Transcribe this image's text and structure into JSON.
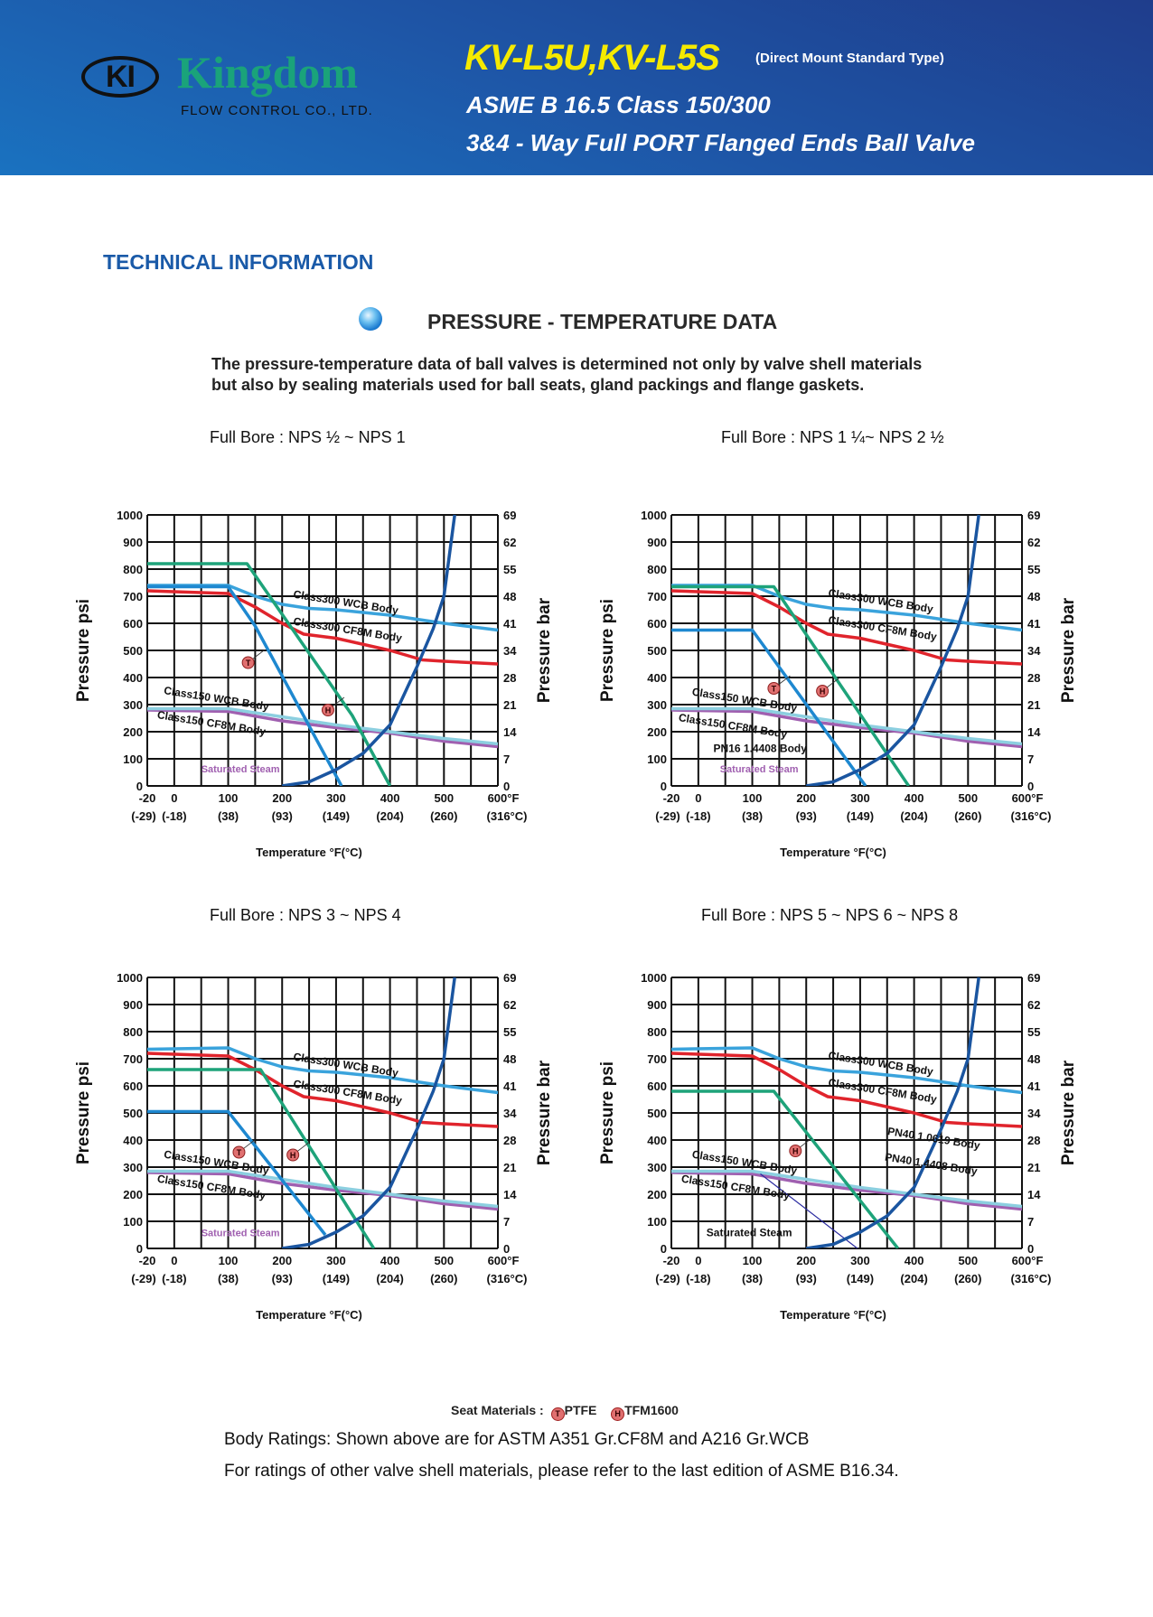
{
  "header": {
    "logo_mark": "KI",
    "logo_name": "Kingdom",
    "logo_sub": "FLOW CONTROL CO., LTD.",
    "model": "KV-L5U,KV-L5S",
    "model_note": "(Direct Mount Standard Type)",
    "line1": "ASME B 16.5 Class 150/300",
    "line2": "3&4 - Way Full PORT Flanged Ends Ball Valve"
  },
  "section_title": "TECHNICAL INFORMATION",
  "pt_title": "PRESSURE - TEMPERATURE DATA",
  "description": [
    "The pressure-temperature data of ball valves is determined not only by valve shell materials",
    "but also by sealing materials used for ball seats, gland packings and flange gaskets."
  ],
  "colors": {
    "class300_wcb": "#3aa3dc",
    "class300_cf8m": "#e0242c",
    "class150_wcb": "#8ccfe0",
    "class150_cf8m": "#a060b0",
    "ptfe": "#1e88d0",
    "tfm1600": "#1ea37a",
    "saturated_steam": "#1a55a0",
    "marker": "#e07070"
  },
  "legend": {
    "label": "Seat Materials :",
    "ptfe_symbol": "T",
    "ptfe": "PTFE",
    "tfm_symbol": "H",
    "tfm": "TFM1600"
  },
  "footer": {
    "line1": "Body Ratings: Shown above are for ASTM A351 Gr.CF8M and A216 Gr.WCB",
    "line2": "For ratings of other valve shell materials, please refer to the last edition of ASME B16.34."
  },
  "chart_data": [
    {
      "type": "line",
      "title": "Full Bore : NPS ½ ~ NPS 1",
      "xlabel": "Temperature °F(°C)",
      "ylabel": "Pressure psi",
      "y2label": "Pressure bar",
      "xlim": [
        -20,
        600
      ],
      "ylim": [
        0,
        1000
      ],
      "grid": true,
      "x_ticks": [
        "-20",
        "0",
        "100",
        "200",
        "300",
        "400",
        "500",
        "600°F"
      ],
      "x_ticks_c": [
        "(-29)",
        "(-18)",
        "(38)",
        "(93)",
        "(149)",
        "(204)",
        "(260)",
        "(316°C)"
      ],
      "y_ticks": [
        "0",
        "100",
        "200",
        "300",
        "400",
        "500",
        "600",
        "700",
        "800",
        "900",
        "1000"
      ],
      "y2_ticks": [
        "0",
        "7",
        "14",
        "21",
        "28",
        "34",
        "41",
        "48",
        "55",
        "62",
        "69"
      ],
      "series": [
        {
          "key": "class150_cf8m",
          "x": [
            -20,
            100,
            200,
            300,
            400,
            500,
            600
          ],
          "y": [
            280,
            275,
            240,
            215,
            195,
            165,
            145
          ]
        },
        {
          "key": "class150_wcb",
          "x": [
            -20,
            100,
            200,
            300,
            400,
            500,
            600
          ],
          "y": [
            285,
            285,
            255,
            225,
            200,
            175,
            155
          ]
        },
        {
          "key": "class300_cf8m",
          "x": [
            -20,
            100,
            150,
            200,
            240,
            300,
            400,
            460,
            500,
            600
          ],
          "y": [
            720,
            710,
            660,
            600,
            560,
            545,
            500,
            465,
            460,
            450
          ]
        },
        {
          "key": "class300_wcb",
          "x": [
            -20,
            100,
            150,
            200,
            250,
            300,
            400,
            500,
            600
          ],
          "y": [
            740,
            740,
            700,
            670,
            655,
            650,
            630,
            600,
            575
          ]
        },
        {
          "key": "ptfe",
          "x": [
            -20,
            100,
            150,
            310
          ],
          "y": [
            735,
            735,
            590,
            0
          ]
        },
        {
          "key": "tfm1600",
          "x": [
            -20,
            135,
            330,
            400
          ],
          "y": [
            820,
            820,
            260,
            0
          ]
        },
        {
          "key": "saturated_steam",
          "x": [
            200,
            250,
            300,
            350,
            400,
            450,
            480,
            500,
            520
          ],
          "y": [
            0,
            15,
            60,
            120,
            225,
            440,
            580,
            700,
            1000
          ]
        }
      ],
      "annotations": [
        {
          "text": "Class300 WCB Body",
          "x": 220,
          "y": 695,
          "rot": true
        },
        {
          "text": "Class300 CF8M Body",
          "x": 220,
          "y": 595,
          "rot": true
        },
        {
          "text": "Class150 WCB Body",
          "x": -8,
          "y": 340,
          "rot": true
        },
        {
          "text": "Class150 CF8M Body",
          "x": -13,
          "y": 250,
          "rot": true
        },
        {
          "text": "Saturated Steam",
          "x": 50,
          "y": 50,
          "rot": false,
          "color_key": "class150_cf8m",
          "small": true
        }
      ],
      "markers": [
        {
          "symbol": "T",
          "x": 137,
          "y": 455
        },
        {
          "symbol": "H",
          "x": 285,
          "y": 280
        }
      ]
    },
    {
      "type": "line",
      "title": "Full Bore : NPS 1 ¼~ NPS 2 ½",
      "xlabel": "Temperature °F(°C)",
      "ylabel": "Pressure psi",
      "y2label": "Pressure bar",
      "xlim": [
        -20,
        600
      ],
      "ylim": [
        0,
        1000
      ],
      "grid": true,
      "x_ticks": [
        "-20",
        "0",
        "100",
        "200",
        "300",
        "400",
        "500",
        "600°F"
      ],
      "x_ticks_c": [
        "(-29)",
        "(-18)",
        "(38)",
        "(93)",
        "(149)",
        "(204)",
        "(260)",
        "(316°C)"
      ],
      "y_ticks": [
        "0",
        "100",
        "200",
        "300",
        "400",
        "500",
        "600",
        "700",
        "800",
        "900",
        "1000"
      ],
      "y2_ticks": [
        "0",
        "7",
        "14",
        "21",
        "28",
        "34",
        "41",
        "48",
        "55",
        "62",
        "69"
      ],
      "series": [
        {
          "key": "class150_cf8m",
          "x": [
            -20,
            100,
            200,
            300,
            400,
            500,
            600
          ],
          "y": [
            280,
            275,
            240,
            215,
            195,
            165,
            145
          ]
        },
        {
          "key": "class150_wcb",
          "x": [
            -20,
            100,
            200,
            300,
            400,
            500,
            600
          ],
          "y": [
            285,
            285,
            255,
            225,
            200,
            175,
            155
          ]
        },
        {
          "key": "class300_cf8m",
          "x": [
            -20,
            100,
            150,
            200,
            240,
            300,
            400,
            460,
            500,
            600
          ],
          "y": [
            720,
            710,
            660,
            600,
            560,
            545,
            500,
            465,
            460,
            450
          ]
        },
        {
          "key": "class300_wcb",
          "x": [
            -20,
            100,
            150,
            200,
            250,
            300,
            400,
            500,
            600
          ],
          "y": [
            740,
            740,
            700,
            670,
            655,
            650,
            630,
            600,
            575
          ]
        },
        {
          "key": "ptfe",
          "x": [
            -20,
            100,
            310
          ],
          "y": [
            575,
            575,
            0
          ]
        },
        {
          "key": "tfm1600",
          "x": [
            -20,
            140,
            390
          ],
          "y": [
            735,
            735,
            0
          ]
        },
        {
          "key": "saturated_steam",
          "x": [
            200,
            250,
            300,
            350,
            400,
            450,
            480,
            500,
            520
          ],
          "y": [
            0,
            15,
            60,
            120,
            225,
            440,
            580,
            700,
            1000
          ]
        }
      ],
      "annotations": [
        {
          "text": "Class300 WCB Body",
          "x": 240,
          "y": 700,
          "rot": true
        },
        {
          "text": "Class300 CF8M Body",
          "x": 240,
          "y": 600,
          "rot": true
        },
        {
          "text": "Class150 WCB Body",
          "x": -5,
          "y": 335,
          "rot": true
        },
        {
          "text": "Class150 CF8M Body",
          "x": -15,
          "y": 240,
          "rot": true
        },
        {
          "text": "PN16  1.4408 Body",
          "x": 28,
          "y": 125,
          "rot": false
        },
        {
          "text": "Saturated Steam",
          "x": 40,
          "y": 50,
          "rot": false,
          "color_key": "class150_cf8m",
          "small": true
        }
      ],
      "markers": [
        {
          "symbol": "T",
          "x": 140,
          "y": 360
        },
        {
          "symbol": "H",
          "x": 230,
          "y": 350
        }
      ]
    },
    {
      "type": "line",
      "title": "Full Bore : NPS 3 ~ NPS 4",
      "xlabel": "Temperature °F(°C)",
      "ylabel": "Pressure psi",
      "y2label": "Pressure bar",
      "xlim": [
        -20,
        600
      ],
      "ylim": [
        0,
        1000
      ],
      "grid": true,
      "x_ticks": [
        "-20",
        "0",
        "100",
        "200",
        "300",
        "400",
        "500",
        "600°F"
      ],
      "x_ticks_c": [
        "(-29)",
        "(-18)",
        "(38)",
        "(93)",
        "(149)",
        "(204)",
        "(260)",
        "(316°C)"
      ],
      "y_ticks": [
        "0",
        "100",
        "200",
        "300",
        "400",
        "500",
        "600",
        "700",
        "800",
        "900",
        "1000"
      ],
      "y2_ticks": [
        "0",
        "7",
        "14",
        "21",
        "28",
        "34",
        "41",
        "48",
        "55",
        "62",
        "69"
      ],
      "series": [
        {
          "key": "class150_cf8m",
          "x": [
            -20,
            100,
            200,
            300,
            400,
            500,
            600
          ],
          "y": [
            280,
            275,
            240,
            215,
            195,
            165,
            145
          ]
        },
        {
          "key": "class150_wcb",
          "x": [
            -20,
            100,
            200,
            300,
            400,
            500,
            600
          ],
          "y": [
            285,
            285,
            255,
            225,
            200,
            175,
            155
          ]
        },
        {
          "key": "class300_cf8m",
          "x": [
            -20,
            100,
            150,
            200,
            240,
            300,
            400,
            460,
            500,
            600
          ],
          "y": [
            720,
            710,
            660,
            600,
            560,
            545,
            500,
            465,
            460,
            450
          ]
        },
        {
          "key": "class300_wcb",
          "x": [
            -20,
            100,
            150,
            200,
            250,
            300,
            400,
            500,
            600
          ],
          "y": [
            735,
            740,
            700,
            670,
            655,
            650,
            630,
            600,
            575
          ]
        },
        {
          "key": "ptfe",
          "x": [
            -20,
            100,
            280
          ],
          "y": [
            505,
            505,
            50
          ]
        },
        {
          "key": "tfm1600",
          "x": [
            -20,
            160,
            370
          ],
          "y": [
            660,
            660,
            0
          ]
        },
        {
          "key": "saturated_steam",
          "x": [
            200,
            250,
            300,
            350,
            400,
            450,
            480,
            500,
            520
          ],
          "y": [
            0,
            15,
            60,
            120,
            225,
            440,
            580,
            700,
            1000
          ]
        }
      ],
      "annotations": [
        {
          "text": "Class300 WCB Body",
          "x": 220,
          "y": 695,
          "rot": true
        },
        {
          "text": "Class300 CF8M Body",
          "x": 220,
          "y": 595,
          "rot": true
        },
        {
          "text": "Class150 WCB Body",
          "x": -8,
          "y": 335,
          "rot": true
        },
        {
          "text": "Class150 CF8M Body",
          "x": -13,
          "y": 245,
          "rot": true
        },
        {
          "text": "Saturated Steam",
          "x": 50,
          "y": 45,
          "rot": false,
          "color_key": "class150_cf8m",
          "small": true
        }
      ],
      "markers": [
        {
          "symbol": "T",
          "x": 120,
          "y": 355
        },
        {
          "symbol": "H",
          "x": 220,
          "y": 345
        }
      ]
    },
    {
      "type": "line",
      "title": "Full Bore : NPS 5 ~ NPS 6 ~ NPS 8",
      "xlabel": "Temperature °F(°C)",
      "ylabel": "Pressure psi",
      "y2label": "Pressure bar",
      "xlim": [
        -20,
        600
      ],
      "ylim": [
        0,
        1000
      ],
      "grid": true,
      "x_ticks": [
        "-20",
        "0",
        "100",
        "200",
        "300",
        "400",
        "500",
        "600°F"
      ],
      "x_ticks_c": [
        "(-29)",
        "(-18)",
        "(38)",
        "(93)",
        "(149)",
        "(204)",
        "(260)",
        "(316°C)"
      ],
      "y_ticks": [
        "0",
        "100",
        "200",
        "300",
        "400",
        "500",
        "600",
        "700",
        "800",
        "900",
        "1000"
      ],
      "y2_ticks": [
        "0",
        "7",
        "14",
        "21",
        "28",
        "34",
        "41",
        "48",
        "55",
        "62",
        "69"
      ],
      "series": [
        {
          "key": "class150_cf8m",
          "x": [
            -20,
            100,
            200,
            300,
            400,
            500,
            600
          ],
          "y": [
            280,
            275,
            240,
            215,
            195,
            165,
            145
          ]
        },
        {
          "key": "class150_wcb",
          "x": [
            -20,
            100,
            200,
            300,
            400,
            500,
            600
          ],
          "y": [
            285,
            285,
            255,
            225,
            200,
            175,
            155
          ]
        },
        {
          "key": "class300_cf8m",
          "x": [
            -20,
            100,
            150,
            200,
            240,
            300,
            400,
            460,
            500,
            600
          ],
          "y": [
            720,
            710,
            660,
            600,
            560,
            545,
            500,
            465,
            460,
            450
          ]
        },
        {
          "key": "class300_wcb",
          "x": [
            -20,
            100,
            150,
            200,
            250,
            300,
            400,
            500,
            600
          ],
          "y": [
            735,
            740,
            700,
            670,
            655,
            650,
            630,
            600,
            575
          ]
        },
        {
          "key": "saturated_steam_limit",
          "x": [
            115,
            295
          ],
          "y": [
            275,
            0
          ],
          "thin": true
        },
        {
          "key": "tfm1600",
          "x": [
            -20,
            140,
            370
          ],
          "y": [
            580,
            580,
            0
          ]
        },
        {
          "key": "saturated_steam",
          "x": [
            200,
            250,
            300,
            350,
            400,
            450,
            480,
            500,
            520
          ],
          "y": [
            0,
            15,
            60,
            120,
            225,
            440,
            580,
            700,
            1000
          ]
        }
      ],
      "annotations": [
        {
          "text": "Class300 WCB Body",
          "x": 240,
          "y": 700,
          "rot": true
        },
        {
          "text": "Class300 CF8M Body",
          "x": 240,
          "y": 600,
          "rot": true
        },
        {
          "text": "PN40  1.0619 Body",
          "x": 350,
          "y": 420,
          "rot": true
        },
        {
          "text": "PN40  1.4408 Body",
          "x": 345,
          "y": 325,
          "rot": true
        },
        {
          "text": "Class150 WCB Body",
          "x": -5,
          "y": 335,
          "rot": true
        },
        {
          "text": "Class150 CF8M Body",
          "x": -13,
          "y": 245,
          "rot": true
        },
        {
          "text": "Saturated Steam",
          "x": 15,
          "y": 45,
          "rot": false
        }
      ],
      "markers": [
        {
          "symbol": "H",
          "x": 180,
          "y": 360
        }
      ]
    }
  ]
}
